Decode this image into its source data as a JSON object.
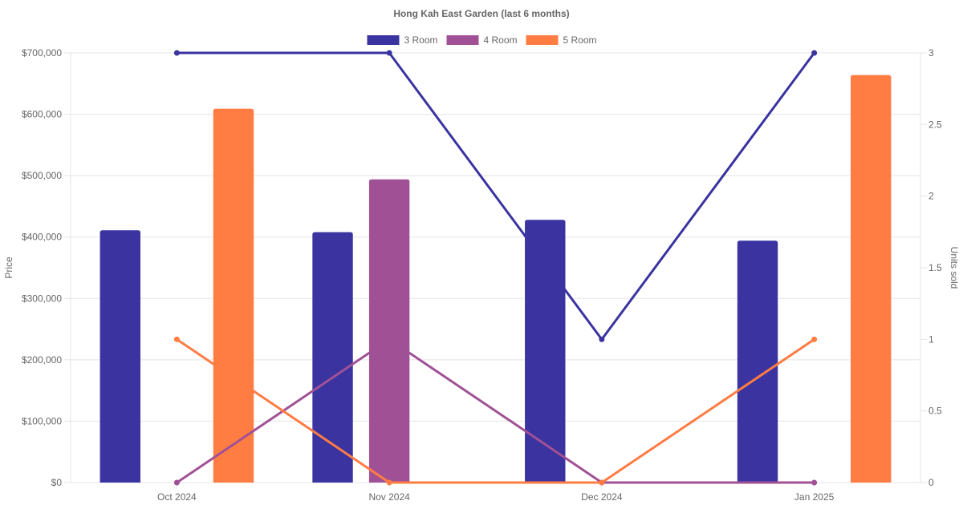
{
  "chart_data": {
    "type": "bar",
    "title": "Hong Kah East Garden (last 6 months)",
    "categories": [
      "Oct 2024",
      "Nov 2024",
      "Dec 2024",
      "Jan 2025"
    ],
    "y_left": {
      "label": "Price",
      "ticks": [
        "$0",
        "$100,000",
        "$200,000",
        "$300,000",
        "$400,000",
        "$500,000",
        "$600,000",
        "$700,000"
      ],
      "ylim": [
        0,
        700000
      ]
    },
    "y_right": {
      "label": "Units sold",
      "ticks": [
        "0",
        "0.5",
        "1",
        "1.5",
        "2",
        "2.5",
        "3"
      ],
      "ylim": [
        0,
        3
      ]
    },
    "legend": {
      "position": "top"
    },
    "grid": true,
    "series": [
      {
        "name": "3 Room",
        "color": "#3a33a0",
        "price": [
          411000,
          408000,
          428000,
          394000
        ],
        "units": [
          3,
          3,
          1,
          3
        ]
      },
      {
        "name": "4 Room",
        "color": "#a05195",
        "price": [
          null,
          494000,
          null,
          null
        ],
        "units": [
          0,
          1,
          0,
          0
        ]
      },
      {
        "name": "5 Room",
        "color": "#ff7c43",
        "price": [
          609000,
          null,
          null,
          664000
        ],
        "units": [
          1,
          0,
          0,
          1
        ]
      }
    ]
  }
}
